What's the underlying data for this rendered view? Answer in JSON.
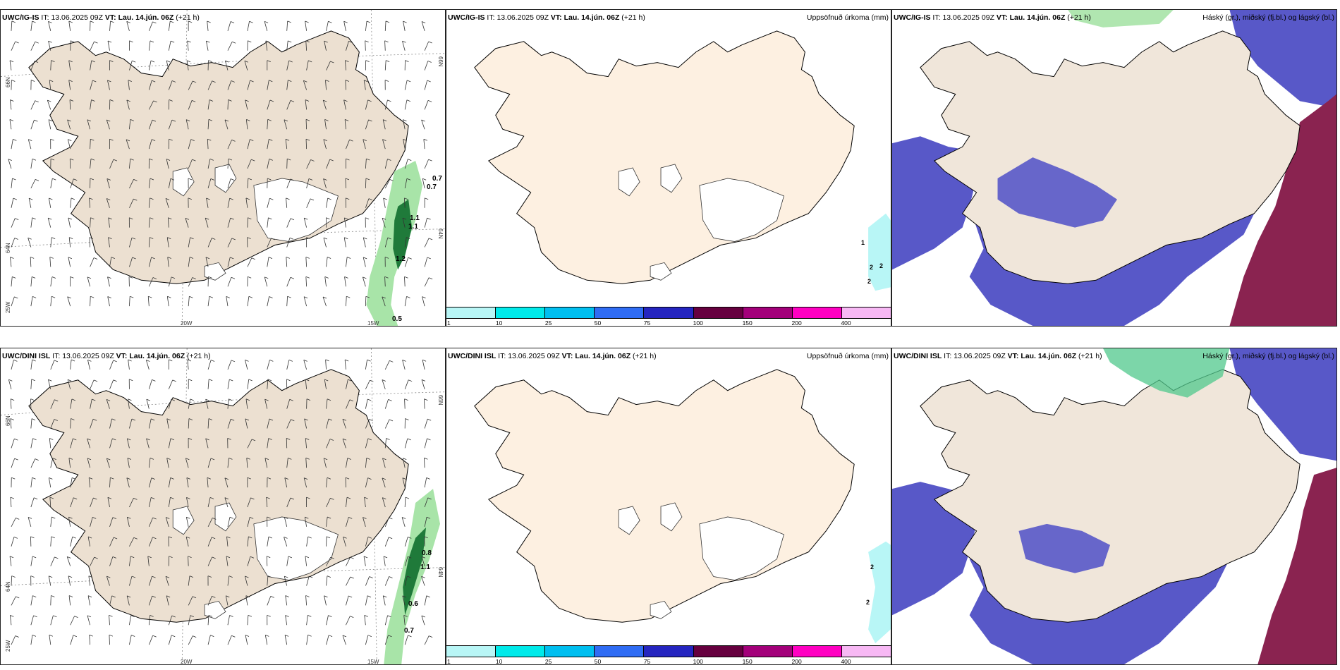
{
  "colors": {
    "land_wind": "#ece0d1",
    "land_precip": "#fdf0e1",
    "land_cloud": "#f0e6da",
    "glacier": "#ffffff",
    "low_cloud": "#5858c8",
    "high_cloud": "#8a2350",
    "precip_green": "#7bd67b",
    "precip_dark": "#1f7a3a",
    "light_cyan": "#b8f6f6"
  },
  "precip_scale": {
    "colors": [
      "#b8f6f6",
      "#00eaea",
      "#00bff0",
      "#2f6cf4",
      "#2525c0",
      "#66003f",
      "#a3007a",
      "#ff00c2",
      "#f7b8f4"
    ],
    "ticks": [
      "1",
      "10",
      "25",
      "50",
      "75",
      "100",
      "150",
      "200",
      "400"
    ]
  },
  "rows": [
    {
      "model": "UWC/IG-IS",
      "it_label": "IT:",
      "it_value": "13.06.2025 09Z",
      "vt_label": "VT:",
      "vt_value": "Lau. 14.jún. 06Z",
      "lead": "(+21 h)",
      "precip_title": "Uppsöfnuð úrkoma (mm)",
      "cloud_title": "Háský (gr.), miðský (fj.bl.) og lágský (bl.)",
      "wind_values": [
        "0.7",
        "0.7",
        "1.1",
        "1.1",
        "1.2",
        "0.5"
      ],
      "precip_values": [
        "1",
        "2",
        "2",
        "2"
      ],
      "lat_labels": [
        "66N",
        "64N",
        "25W",
        "66N",
        "64N"
      ],
      "lon_labels": [
        "20W",
        "15W"
      ]
    },
    {
      "model": "UWC/DINI ISL",
      "it_label": "IT:",
      "it_value": "13.06.2025 09Z",
      "vt_label": "VT:",
      "vt_value": "Lau. 14.jún. 06Z",
      "lead": "(+21 h)",
      "precip_title": "Uppsöfnuð úrkoma (mm)",
      "cloud_title": "Háský (gr.), miðský (fj.bl.) og lágský (bl.)",
      "wind_values": [
        "0.8",
        "1.1",
        "0.6",
        "0.7"
      ],
      "precip_values": [
        "2",
        "2"
      ],
      "lat_labels": [
        "66N",
        "64N",
        "25W",
        "66N",
        "64N"
      ],
      "lon_labels": [
        "20W",
        "15W"
      ]
    }
  ]
}
